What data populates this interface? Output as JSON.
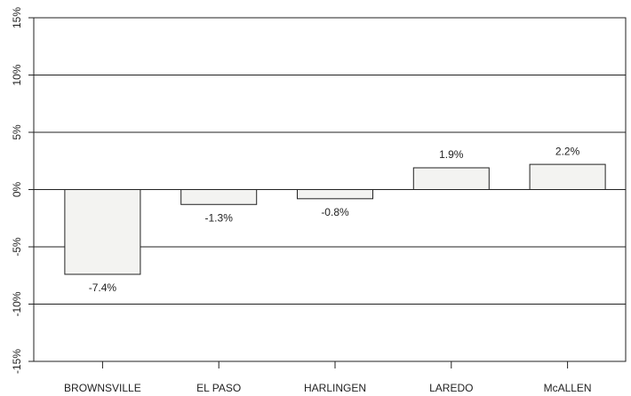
{
  "chart_data": {
    "type": "bar",
    "categories": [
      "BROWNSVILLE",
      "EL PASO",
      "HARLINGEN",
      "LAREDO",
      "McALLEN"
    ],
    "values": [
      -7.4,
      -1.3,
      -0.8,
      1.9,
      2.2
    ],
    "value_labels": [
      "-7.4%",
      "-1.3%",
      "-0.8%",
      "1.9%",
      "2.2%"
    ],
    "color": "#f3f3f1",
    "ylim": [
      -15,
      15
    ],
    "yticks": [
      {
        "value": -15,
        "label": "-15%"
      },
      {
        "value": -10,
        "label": "-10%"
      },
      {
        "value": -5,
        "label": "-5%"
      },
      {
        "value": 0,
        "label": "0%"
      },
      {
        "value": 5,
        "label": "5%"
      },
      {
        "value": 10,
        "label": "10%"
      },
      {
        "value": 15,
        "label": "15%"
      }
    ],
    "grid": true
  }
}
